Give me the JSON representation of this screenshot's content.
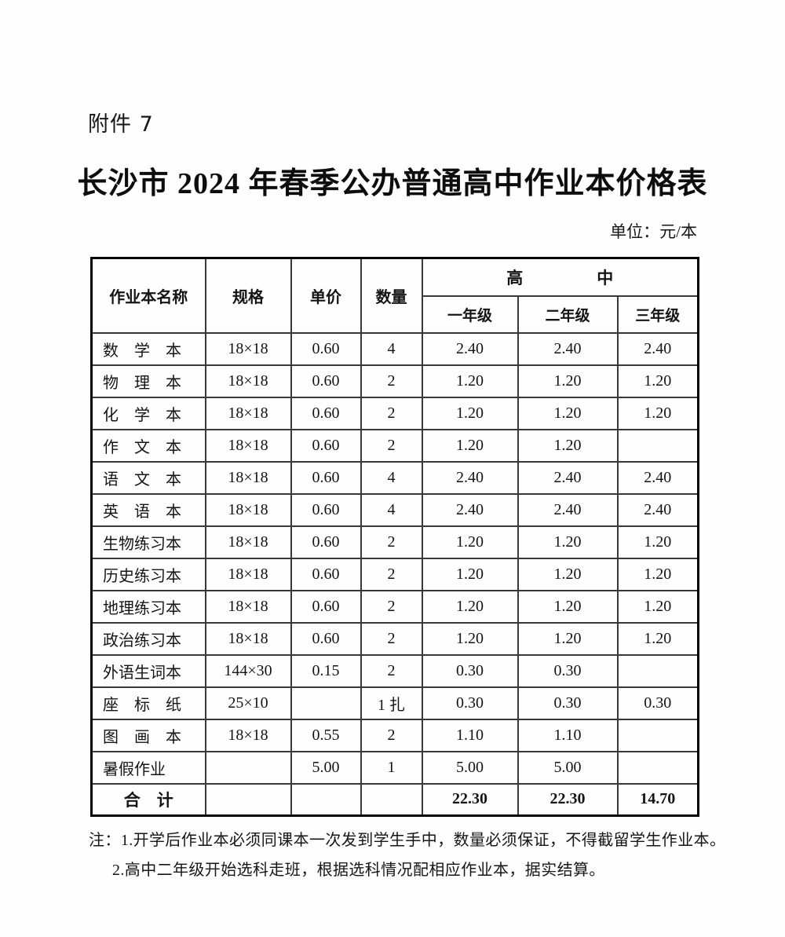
{
  "page": {
    "attachment_label": "附件 7",
    "title": "长沙市 2024 年春季公办普通高中作业本价格表",
    "unit_label": "单位：元/本"
  },
  "table": {
    "headers": {
      "name": "作业本名称",
      "spec": "规格",
      "unit_price": "单价",
      "quantity": "数量",
      "group": "高中",
      "grades": [
        "一年级",
        "二年级",
        "三年级"
      ]
    },
    "rows": [
      {
        "name": "数　学　本",
        "spec": "18×18",
        "price": "0.60",
        "qty": "4",
        "g1": "2.40",
        "g2": "2.40",
        "g3": "2.40"
      },
      {
        "name": "物　理　本",
        "spec": "18×18",
        "price": "0.60",
        "qty": "2",
        "g1": "1.20",
        "g2": "1.20",
        "g3": "1.20"
      },
      {
        "name": "化　学　本",
        "spec": "18×18",
        "price": "0.60",
        "qty": "2",
        "g1": "1.20",
        "g2": "1.20",
        "g3": "1.20"
      },
      {
        "name": "作　文　本",
        "spec": "18×18",
        "price": "0.60",
        "qty": "2",
        "g1": "1.20",
        "g2": "1.20",
        "g3": ""
      },
      {
        "name": "语　文　本",
        "spec": "18×18",
        "price": "0.60",
        "qty": "4",
        "g1": "2.40",
        "g2": "2.40",
        "g3": "2.40"
      },
      {
        "name": "英　语　本",
        "spec": "18×18",
        "price": "0.60",
        "qty": "4",
        "g1": "2.40",
        "g2": "2.40",
        "g3": "2.40"
      },
      {
        "name": "生物练习本",
        "spec": "18×18",
        "price": "0.60",
        "qty": "2",
        "g1": "1.20",
        "g2": "1.20",
        "g3": "1.20"
      },
      {
        "name": "历史练习本",
        "spec": "18×18",
        "price": "0.60",
        "qty": "2",
        "g1": "1.20",
        "g2": "1.20",
        "g3": "1.20"
      },
      {
        "name": "地理练习本",
        "spec": "18×18",
        "price": "0.60",
        "qty": "2",
        "g1": "1.20",
        "g2": "1.20",
        "g3": "1.20"
      },
      {
        "name": "政治练习本",
        "spec": "18×18",
        "price": "0.60",
        "qty": "2",
        "g1": "1.20",
        "g2": "1.20",
        "g3": "1.20"
      },
      {
        "name": "外语生词本",
        "spec": "144×30",
        "price": "0.15",
        "qty": "2",
        "g1": "0.30",
        "g2": "0.30",
        "g3": ""
      },
      {
        "name": "座　标　纸",
        "spec": "25×10",
        "price": "",
        "qty": "1 扎",
        "g1": "0.30",
        "g2": "0.30",
        "g3": "0.30"
      },
      {
        "name": "图　画　本",
        "spec": "18×18",
        "price": "0.55",
        "qty": "2",
        "g1": "1.10",
        "g2": "1.10",
        "g3": ""
      },
      {
        "name": "暑假作业",
        "spec": "",
        "price": "5.00",
        "qty": "1",
        "g1": "5.00",
        "g2": "5.00",
        "g3": ""
      }
    ],
    "total_row": {
      "name": "合　计",
      "spec": "",
      "price": "",
      "qty": "",
      "g1": "22.30",
      "g2": "22.30",
      "g3": "14.70"
    }
  },
  "notes": {
    "prefix": "注：",
    "items": [
      "1.开学后作业本必须同课本一次发到学生手中，数量必须保证，不得截留学生作业本。",
      "2.高中二年级开始选科走班，根据选科情况配相应作业本，据实结算。"
    ]
  }
}
